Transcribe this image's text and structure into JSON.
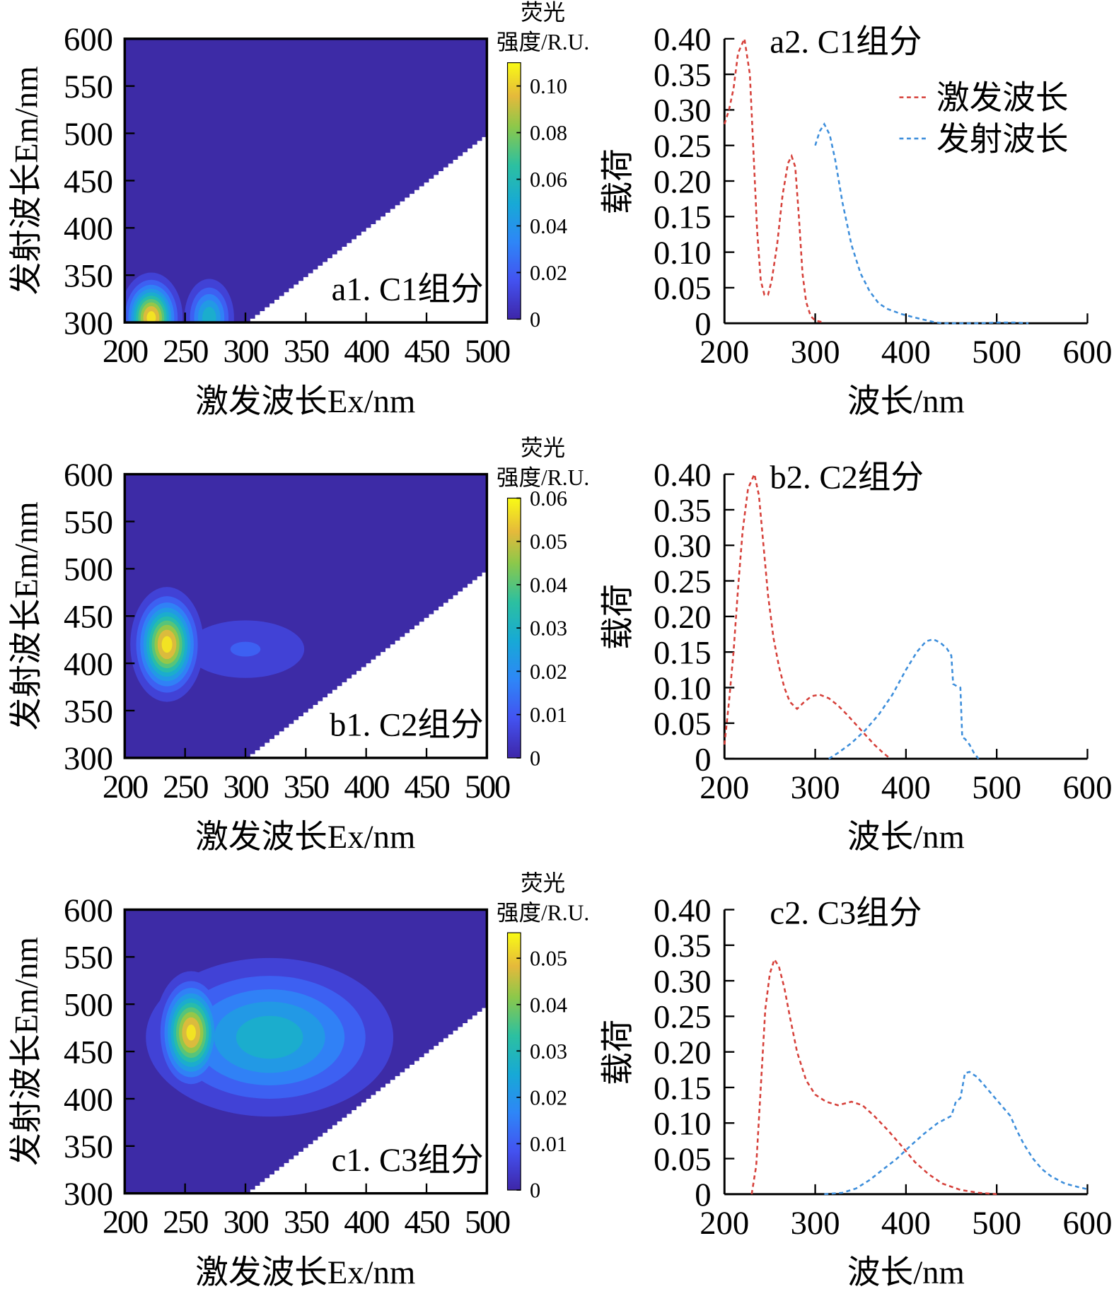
{
  "colors": {
    "background": "#3d2ba6",
    "excitation": "#d6403a",
    "emission": "#3d8edb",
    "mask": "#ffffff"
  },
  "legend": {
    "excitation": "激发波长",
    "emission": "发射波长"
  },
  "chart_data": [
    {
      "id": "a1",
      "type": "heatmap",
      "label": "a1. C1组分",
      "xlabel": "激发波长Ex/nm",
      "ylabel": "发射波长Em/nm",
      "xlim": [
        200,
        500
      ],
      "ylim": [
        300,
        600
      ],
      "xticks": [
        "200",
        "250",
        "300",
        "350",
        "400",
        "450",
        "500"
      ],
      "yticks": [
        "300",
        "350",
        "400",
        "450",
        "500",
        "550",
        "600"
      ],
      "colorbar": {
        "title": [
          "荧光",
          "强度/R.U."
        ],
        "max": 0.11,
        "ticks": [
          {
            "v": 0,
            "t": "0"
          },
          {
            "v": 0.02,
            "t": "0.02"
          },
          {
            "v": 0.04,
            "t": "0.04"
          },
          {
            "v": 0.06,
            "t": "0.06"
          },
          {
            "v": 0.08,
            "t": "0.08"
          },
          {
            "v": 0.1,
            "t": "0.10"
          }
        ]
      },
      "peaks": [
        {
          "ex": 222,
          "em": 305,
          "intensity": 0.11,
          "sigma_ex": 12,
          "sigma_em": 22
        },
        {
          "ex": 270,
          "em": 305,
          "intensity": 0.06,
          "sigma_ex": 11,
          "sigma_em": 22
        }
      ]
    },
    {
      "id": "a2",
      "type": "line",
      "label": "a2. C1组分",
      "xlabel": "波长/nm",
      "ylabel": "载荷",
      "legend": true,
      "xlim": [
        200,
        600
      ],
      "ylim": [
        0,
        0.4
      ],
      "xticks": [
        "200",
        "300",
        "400",
        "500",
        "600"
      ],
      "yticks": [
        "0",
        "0.05",
        "0.10",
        "0.15",
        "0.20",
        "0.25",
        "0.30",
        "0.35",
        "0.40"
      ],
      "series": [
        {
          "name": "激发波长",
          "x": [
            200,
            205,
            210,
            215,
            222,
            228,
            232,
            236,
            240,
            244,
            248,
            252,
            258,
            264,
            270,
            274,
            278,
            282,
            286,
            290,
            295,
            300,
            310
          ],
          "y": [
            0.28,
            0.3,
            0.33,
            0.38,
            0.4,
            0.35,
            0.24,
            0.13,
            0.06,
            0.04,
            0.04,
            0.06,
            0.11,
            0.18,
            0.225,
            0.235,
            0.22,
            0.15,
            0.07,
            0.03,
            0.01,
            0.004,
            0.001
          ]
        },
        {
          "name": "发射波长",
          "x": [
            300,
            305,
            310,
            316,
            322,
            330,
            340,
            350,
            360,
            370,
            380,
            395,
            410,
            430,
            440,
            480,
            500,
            520,
            535
          ],
          "y": [
            0.25,
            0.27,
            0.28,
            0.265,
            0.23,
            0.17,
            0.11,
            0.07,
            0.045,
            0.028,
            0.02,
            0.013,
            0.008,
            0.002,
            0.0,
            0.0,
            0.001,
            0.001,
            0.0
          ]
        }
      ]
    },
    {
      "id": "b1",
      "type": "heatmap",
      "label": "b1. C2组分",
      "xlabel": "激发波长Ex/nm",
      "ylabel": "发射波长Em/nm",
      "xlim": [
        200,
        500
      ],
      "ylim": [
        300,
        600
      ],
      "xticks": [
        "200",
        "250",
        "300",
        "350",
        "400",
        "450",
        "500"
      ],
      "yticks": [
        "300",
        "350",
        "400",
        "450",
        "500",
        "550",
        "600"
      ],
      "colorbar": {
        "title": [
          "荧光",
          "强度/R.U."
        ],
        "max": 0.06,
        "ticks": [
          {
            "v": 0,
            "t": "0"
          },
          {
            "v": 0.01,
            "t": "0.01"
          },
          {
            "v": 0.02,
            "t": "0.02"
          },
          {
            "v": 0.03,
            "t": "0.03"
          },
          {
            "v": 0.04,
            "t": "0.04"
          },
          {
            "v": 0.05,
            "t": "0.05"
          },
          {
            "v": 0.06,
            "t": "0.06"
          }
        ]
      },
      "peaks": [
        {
          "ex": 235,
          "em": 420,
          "intensity": 0.06,
          "sigma_ex": 14,
          "sigma_em": 28
        },
        {
          "ex": 300,
          "em": 415,
          "intensity": 0.012,
          "sigma_ex": 40,
          "sigma_em": 25
        }
      ]
    },
    {
      "id": "b2",
      "type": "line",
      "label": "b2. C2组分",
      "xlabel": "波长/nm",
      "ylabel": "载荷",
      "legend": false,
      "xlim": [
        200,
        600
      ],
      "ylim": [
        0,
        0.4
      ],
      "xticks": [
        "200",
        "300",
        "400",
        "500",
        "600"
      ],
      "yticks": [
        "0",
        "0.05",
        "0.10",
        "0.15",
        "0.20",
        "0.25",
        "0.30",
        "0.35",
        "0.40"
      ],
      "series": [
        {
          "name": "激发波长",
          "x": [
            200,
            205,
            210,
            215,
            220,
            226,
            233,
            238,
            243,
            248,
            254,
            260,
            266,
            272,
            280,
            288,
            296,
            305,
            315,
            325,
            335,
            345,
            355,
            365,
            375,
            383
          ],
          "y": [
            0.02,
            0.08,
            0.15,
            0.24,
            0.32,
            0.38,
            0.4,
            0.37,
            0.3,
            0.23,
            0.17,
            0.13,
            0.1,
            0.08,
            0.07,
            0.08,
            0.088,
            0.09,
            0.085,
            0.075,
            0.062,
            0.048,
            0.034,
            0.02,
            0.008,
            0.0
          ]
        },
        {
          "name": "发射波长",
          "x": [
            315,
            325,
            340,
            355,
            370,
            385,
            400,
            412,
            422,
            430,
            438,
            445,
            450,
            452,
            456,
            460,
            462,
            465,
            470,
            475,
            480
          ],
          "y": [
            0.0,
            0.008,
            0.022,
            0.04,
            0.062,
            0.09,
            0.125,
            0.15,
            0.165,
            0.168,
            0.163,
            0.155,
            0.145,
            0.105,
            0.102,
            0.1,
            0.03,
            0.028,
            0.02,
            0.008,
            0.0
          ]
        }
      ]
    },
    {
      "id": "c1",
      "type": "heatmap",
      "label": "c1. C3组分",
      "xlabel": "激发波长Ex/nm",
      "ylabel": "发射波长Em/nm",
      "xlim": [
        200,
        500
      ],
      "ylim": [
        300,
        600
      ],
      "xticks": [
        "200",
        "250",
        "300",
        "350",
        "400",
        "450",
        "500"
      ],
      "yticks": [
        "300",
        "350",
        "400",
        "450",
        "500",
        "550",
        "600"
      ],
      "colorbar": {
        "title": [
          "荧光",
          "强度/R.U."
        ],
        "max": 0.0555,
        "ticks": [
          {
            "v": 0,
            "t": "0"
          },
          {
            "v": 0.01,
            "t": "0.01"
          },
          {
            "v": 0.02,
            "t": "0.02"
          },
          {
            "v": 0.03,
            "t": "0.03"
          },
          {
            "v": 0.04,
            "t": "0.04"
          },
          {
            "v": 0.05,
            "t": "0.05"
          }
        ]
      },
      "peaks": [
        {
          "ex": 255,
          "em": 470,
          "intensity": 0.055,
          "sigma_ex": 14,
          "sigma_em": 30
        },
        {
          "ex": 320,
          "em": 465,
          "intensity": 0.03,
          "sigma_ex": 55,
          "sigma_em": 45
        }
      ]
    },
    {
      "id": "c2",
      "type": "line",
      "label": "c2. C3组分",
      "xlabel": "波长/nm",
      "ylabel": "载荷",
      "legend": false,
      "xlim": [
        200,
        600
      ],
      "ylim": [
        0,
        0.4
      ],
      "xticks": [
        "200",
        "300",
        "400",
        "500",
        "600"
      ],
      "yticks": [
        "0",
        "0.05",
        "0.10",
        "0.15",
        "0.20",
        "0.25",
        "0.30",
        "0.35",
        "0.40"
      ],
      "series": [
        {
          "name": "激发波长",
          "x": [
            230,
            235,
            240,
            245,
            250,
            255,
            260,
            266,
            272,
            280,
            290,
            300,
            312,
            325,
            340,
            352,
            365,
            380,
            395,
            410,
            425,
            440,
            460,
            480,
            500
          ],
          "y": [
            0.0,
            0.04,
            0.15,
            0.26,
            0.31,
            0.33,
            0.32,
            0.29,
            0.25,
            0.2,
            0.16,
            0.14,
            0.13,
            0.125,
            0.13,
            0.125,
            0.11,
            0.09,
            0.068,
            0.045,
            0.028,
            0.015,
            0.006,
            0.002,
            0.0
          ]
        },
        {
          "name": "发射波长",
          "x": [
            310,
            330,
            345,
            360,
            375,
            390,
            405,
            420,
            435,
            450,
            455,
            460,
            465,
            470,
            478,
            485,
            495,
            505,
            515,
            522,
            530,
            540,
            550,
            560,
            575,
            590,
            600
          ],
          "y": [
            0.0,
            0.002,
            0.008,
            0.02,
            0.035,
            0.05,
            0.068,
            0.085,
            0.1,
            0.11,
            0.13,
            0.135,
            0.17,
            0.172,
            0.165,
            0.155,
            0.14,
            0.125,
            0.11,
            0.09,
            0.07,
            0.05,
            0.035,
            0.025,
            0.015,
            0.01,
            0.007
          ]
        }
      ]
    }
  ]
}
